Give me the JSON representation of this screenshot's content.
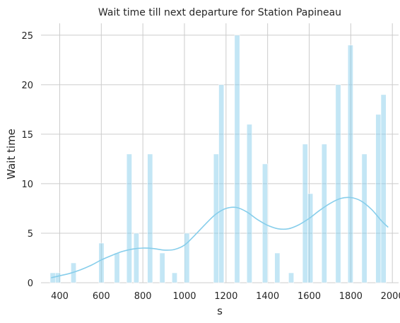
{
  "chart_data": {
    "type": "bar",
    "title": "Wait time till next departure for Station Papineau",
    "xlabel": "s",
    "ylabel": "Wait time",
    "xlim": [
      310,
      2030
    ],
    "ylim": [
      0,
      26.2
    ],
    "x_ticks": [
      400,
      600,
      800,
      1000,
      1200,
      1400,
      1600,
      1800,
      2000
    ],
    "y_ticks": [
      0,
      5,
      10,
      15,
      20,
      25
    ],
    "grid": true,
    "bar_color": "#87ceeb",
    "bins": [
      {
        "x0": 354,
        "x1": 379,
        "count": 1
      },
      {
        "x0": 379,
        "x1": 404,
        "count": 1
      },
      {
        "x0": 454,
        "x1": 479,
        "count": 2
      },
      {
        "x0": 588,
        "x1": 613,
        "count": 4
      },
      {
        "x0": 663,
        "x1": 688,
        "count": 3
      },
      {
        "x0": 722,
        "x1": 747,
        "count": 13
      },
      {
        "x0": 756,
        "x1": 781,
        "count": 5
      },
      {
        "x0": 822,
        "x1": 847,
        "count": 13
      },
      {
        "x0": 881,
        "x1": 906,
        "count": 3
      },
      {
        "x0": 940,
        "x1": 965,
        "count": 1
      },
      {
        "x0": 999,
        "x1": 1024,
        "count": 5
      },
      {
        "x0": 1140,
        "x1": 1165,
        "count": 13
      },
      {
        "x0": 1165,
        "x1": 1190,
        "count": 20
      },
      {
        "x0": 1241,
        "x1": 1266,
        "count": 25
      },
      {
        "x0": 1300,
        "x1": 1325,
        "count": 16
      },
      {
        "x0": 1375,
        "x1": 1400,
        "count": 12
      },
      {
        "x0": 1434,
        "x1": 1459,
        "count": 3
      },
      {
        "x0": 1501,
        "x1": 1526,
        "count": 1
      },
      {
        "x0": 1568,
        "x1": 1593,
        "count": 14
      },
      {
        "x0": 1593,
        "x1": 1618,
        "count": 9
      },
      {
        "x0": 1660,
        "x1": 1685,
        "count": 14
      },
      {
        "x0": 1727,
        "x1": 1752,
        "count": 20
      },
      {
        "x0": 1786,
        "x1": 1811,
        "count": 24
      },
      {
        "x0": 1853,
        "x1": 1878,
        "count": 13
      },
      {
        "x0": 1920,
        "x1": 1945,
        "count": 17
      },
      {
        "x0": 1945,
        "x1": 1970,
        "count": 19
      }
    ],
    "kde": {
      "x": [
        359,
        400,
        450,
        500,
        550,
        600,
        650,
        700,
        750,
        800,
        850,
        900,
        950,
        1000,
        1050,
        1100,
        1150,
        1200,
        1250,
        1300,
        1350,
        1400,
        1450,
        1500,
        1550,
        1600,
        1650,
        1700,
        1750,
        1800,
        1850,
        1900,
        1950,
        1980
      ],
      "y": [
        0.5,
        0.7,
        0.95,
        1.3,
        1.75,
        2.3,
        2.75,
        3.15,
        3.4,
        3.5,
        3.45,
        3.3,
        3.35,
        3.8,
        4.8,
        5.9,
        6.9,
        7.5,
        7.6,
        7.15,
        6.4,
        5.8,
        5.45,
        5.45,
        5.85,
        6.5,
        7.3,
        8.0,
        8.5,
        8.6,
        8.25,
        7.4,
        6.2,
        5.6
      ]
    }
  }
}
